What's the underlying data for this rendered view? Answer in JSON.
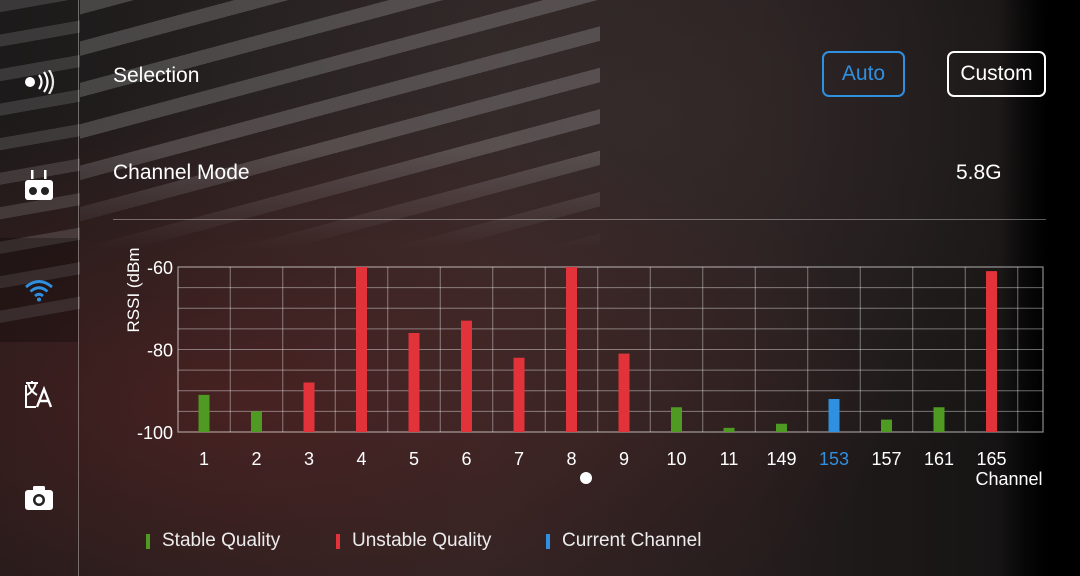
{
  "sidebar": {
    "items": [
      {
        "icon": "signal-broadcast-icon",
        "active": false
      },
      {
        "icon": "remote-controller-icon",
        "active": false
      },
      {
        "icon": "wifi-icon",
        "active": true
      },
      {
        "icon": "language-icon",
        "active": false
      },
      {
        "icon": "camera-icon",
        "active": false
      }
    ]
  },
  "selection": {
    "label": "Selection",
    "options": [
      "Auto",
      "Custom"
    ],
    "selected": "Auto"
  },
  "channel_mode": {
    "label": "Channel Mode",
    "value": "5.8G"
  },
  "colors": {
    "stable": "#4f9a22",
    "unstable": "#e2333b",
    "current": "#2f8fe0",
    "accent": "#2f8fe0"
  },
  "chart_data": {
    "type": "bar",
    "ylabel": "RSSI (dBm",
    "xlabel": "Channel",
    "ylim": [
      -100,
      -60
    ],
    "yticks": [
      "-60",
      "-80",
      "-100"
    ],
    "grid": true,
    "categories": [
      "1",
      "2",
      "3",
      "4",
      "5",
      "6",
      "7",
      "8",
      "9",
      "10",
      "11",
      "149",
      "153",
      "157",
      "161",
      "165"
    ],
    "values": [
      -91,
      -95,
      -88,
      -60,
      -76,
      -73,
      -82,
      -60,
      -81,
      -94,
      -99,
      -98,
      -92,
      -97,
      -94,
      -61
    ],
    "quality": [
      "stable",
      "stable",
      "unstable",
      "unstable",
      "unstable",
      "unstable",
      "unstable",
      "unstable",
      "unstable",
      "stable",
      "stable",
      "stable",
      "current",
      "stable",
      "stable",
      "unstable"
    ],
    "current_channel": "153"
  },
  "legend": {
    "stable": "Stable Quality",
    "unstable": "Unstable Quality",
    "current": "Current Channel"
  }
}
